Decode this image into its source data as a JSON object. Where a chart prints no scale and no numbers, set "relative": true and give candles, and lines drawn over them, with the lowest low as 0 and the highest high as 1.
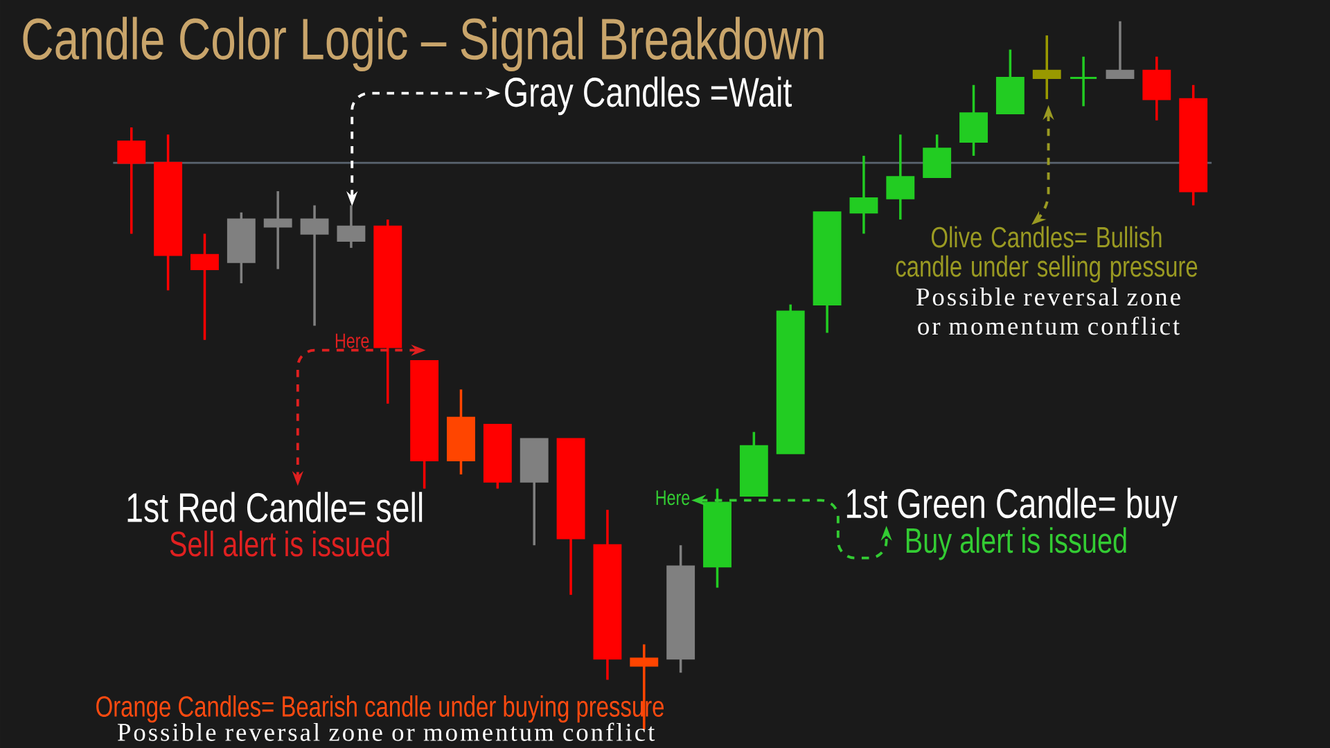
{
  "chart_data": {
    "type": "candlestick",
    "title": "Candle Color Logic – Signal Breakdown",
    "relative": true,
    "categories": [
      null,
      null,
      null,
      null,
      null,
      null,
      null,
      null,
      null,
      null,
      null,
      null,
      null,
      null,
      null,
      null,
      null,
      null,
      null,
      null,
      null,
      null,
      null,
      null,
      null,
      null,
      null,
      null,
      null,
      null
    ],
    "ohlc": [
      [
        0.83,
        0.85,
        0.7,
        0.8
      ],
      [
        0.8,
        0.84,
        0.62,
        0.67
      ],
      [
        0.67,
        0.7,
        0.55,
        0.65
      ],
      [
        0.66,
        0.73,
        0.63,
        0.72
      ],
      [
        0.72,
        0.76,
        0.65,
        0.71
      ],
      [
        0.72,
        0.74,
        0.57,
        0.7
      ],
      [
        0.71,
        0.74,
        0.68,
        0.69
      ],
      [
        0.71,
        0.72,
        0.46,
        0.54
      ],
      [
        0.52,
        0.52,
        0.34,
        0.38
      ],
      [
        0.44,
        0.48,
        0.36,
        0.38
      ],
      [
        0.43,
        0.43,
        0.34,
        0.35
      ],
      [
        0.41,
        0.41,
        0.26,
        0.35
      ],
      [
        0.41,
        0.41,
        0.19,
        0.27
      ],
      [
        0.26,
        0.31,
        0.07,
        0.1
      ],
      [
        0.1,
        0.12,
        0,
        0.09
      ],
      [
        0.1,
        0.26,
        0.08,
        0.23
      ],
      [
        0.23,
        0.34,
        0.2,
        0.32
      ],
      [
        0.33,
        0.42,
        0.33,
        0.4
      ],
      [
        0.39,
        0.6,
        0.39,
        0.59
      ],
      [
        0.6,
        0.73,
        0.56,
        0.73
      ],
      [
        0.73,
        0.81,
        0.7,
        0.75
      ],
      [
        0.75,
        0.84,
        0.72,
        0.78
      ],
      [
        0.78,
        0.84,
        0.78,
        0.82
      ],
      [
        0.83,
        0.91,
        0.81,
        0.87
      ],
      [
        0.87,
        0.96,
        0.87,
        0.92
      ],
      [
        0.92,
        0.98,
        0.89,
        0.93
      ],
      [
        0.92,
        0.95,
        0.88,
        0.92
      ],
      [
        0.92,
        1.0,
        0.92,
        0.93
      ],
      [
        0.93,
        0.95,
        0.86,
        0.89
      ],
      [
        0.89,
        0.91,
        0.74,
        0.76
      ]
    ],
    "colors": [
      "#ff0000",
      "#ff0000",
      "#ff0000",
      "#808080",
      "#808080",
      "#808080",
      "#808080",
      "#ff0000",
      "#ff0000",
      "#ff4500",
      "#ff0000",
      "#808080",
      "#ff0000",
      "#ff0000",
      "#ff4500",
      "#808080",
      "#22cc22",
      "#22cc22",
      "#22cc22",
      "#22cc22",
      "#22cc22",
      "#22cc22",
      "#22cc22",
      "#22cc22",
      "#22cc22",
      "#999900",
      "#22cc22",
      "#808080",
      "#ff0000",
      "#ff0000"
    ],
    "ref_lines": [
      {
        "axis": "y",
        "value": 0.8,
        "color": "#5a6470"
      }
    ],
    "annotations": [
      "Gray Candles =Wait",
      "Here",
      "1st Red Candle= sell",
      "Sell alert is issued",
      "Here",
      "1st Green Candle= buy",
      "Buy alert is issued",
      "Olive Candles= Bullish candle under selling pressure",
      "Possible reversal zone or momentum conflict",
      "Orange Candles= Bearish candle under buying pressure",
      "Possible reversal zone or momentum conflict"
    ]
  }
}
